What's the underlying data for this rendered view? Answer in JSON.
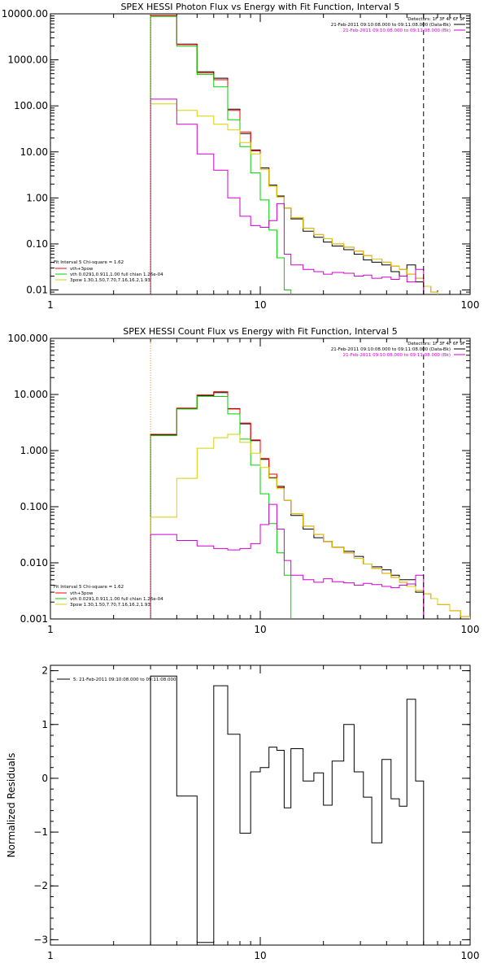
{
  "chart_data": [
    {
      "type": "line",
      "title": "SPEX HESSI Photon Flux vs Energy with Fit Function, Interval 5",
      "xscale": "log",
      "yscale": "log",
      "xlim": [
        1,
        100
      ],
      "ylim": [
        0.008,
        10000
      ],
      "xticks": [
        {
          "v": 1,
          "label": "1"
        },
        {
          "v": 10,
          "label": "10"
        },
        {
          "v": 100,
          "label": "100"
        }
      ],
      "yticks": [
        {
          "v": 10000,
          "label": "10000.00"
        },
        {
          "v": 1000,
          "label": "1000.00"
        },
        {
          "v": 100,
          "label": "100.00"
        },
        {
          "v": 10,
          "label": "10.00"
        },
        {
          "v": 1,
          "label": "1.00"
        },
        {
          "v": 0.1,
          "label": "0.10"
        },
        {
          "v": 0.01,
          "label": "0.01"
        }
      ],
      "vlines": [
        {
          "x": 3.0,
          "style": "dotted"
        },
        {
          "x": 60,
          "style": "dashed"
        }
      ],
      "header": [
        "Detectors: 1F 3F 4F 6F 9F",
        "21-Feb-2011 09:10:08.000 to 09:11:08.000 (Data-Bk)",
        "21-Feb-2011 09:10:08.000 to 09:11:08.000 (Bk)"
      ],
      "header_colors": [
        "#000000",
        "#000000",
        "#d000d0"
      ],
      "header_swatch": [
        false,
        true,
        true
      ],
      "legend": {
        "title": "Fit Interval 5   Chi-square = 1.62",
        "items": [
          {
            "label": "vth+3pow",
            "color": "#ff0000"
          },
          {
            "label": "vth 0.0291,0.911,1.00  full chian 1.26e-04",
            "color": "#00d000"
          },
          {
            "label": "3pow 1.30,1.50,7.70,7.16,16.2,1.93",
            "color": "#d8d000"
          }
        ]
      },
      "series": [
        {
          "color": "#000000",
          "edges": [
            3.0,
            4.0,
            5.0,
            6.0,
            7.0,
            8.0,
            9.0,
            10.0,
            11.0,
            12.0,
            13.0,
            14.0,
            16.0,
            18.0,
            20.0,
            22.0,
            25.0,
            28.0,
            31.0,
            34.0,
            38.0,
            42.0,
            46.0,
            50.0,
            55.0,
            60.0
          ],
          "values": [
            9000,
            2200,
            550,
            400,
            85,
            25,
            11,
            4.5,
            1.9,
            1.1,
            0.6,
            0.35,
            0.19,
            0.14,
            0.11,
            0.09,
            0.075,
            0.06,
            0.045,
            0.04,
            0.035,
            0.025,
            0.02,
            0.035,
            0.015
          ]
        },
        {
          "color": "#ff0000",
          "edges": [
            3.0,
            4.0,
            5.0,
            6.0,
            7.0,
            8.0,
            9.0,
            10.0,
            11.0,
            12.0,
            13.0,
            14.0,
            16.0,
            18.0,
            20.0,
            22.0,
            25.0,
            28.0,
            31.0,
            34.0,
            38.0,
            42.0,
            46.0,
            50.0,
            55.0,
            60.0,
            65.0,
            70.0
          ],
          "values": [
            9200,
            2150,
            520,
            370,
            80,
            27,
            10.5,
            4.2,
            1.8,
            1.05,
            0.6,
            0.37,
            0.22,
            0.16,
            0.13,
            0.1,
            0.085,
            0.07,
            0.056,
            0.047,
            0.04,
            0.033,
            0.028,
            0.022,
            0.018,
            0.012,
            0.009
          ]
        },
        {
          "color": "#00d000",
          "edges": [
            3.0,
            4.0,
            5.0,
            6.0,
            7.0,
            8.0,
            9.0,
            10.0,
            11.0,
            12.0,
            13.0,
            14.0
          ],
          "values": [
            8800,
            2000,
            480,
            260,
            50,
            13,
            3.5,
            0.9,
            0.2,
            0.05,
            0.01
          ]
        },
        {
          "color": "#d8d000",
          "edges": [
            3.0,
            4.0,
            5.0,
            6.0,
            7.0,
            8.0,
            9.0,
            10.0,
            11.0,
            12.0,
            13.0,
            14.0,
            16.0,
            18.0,
            20.0,
            22.0,
            25.0,
            28.0,
            31.0,
            34.0,
            38.0,
            42.0,
            46.0,
            50.0,
            55.0,
            60.0,
            65.0,
            70.0
          ],
          "values": [
            110,
            80,
            60,
            40,
            30,
            16,
            9,
            4.2,
            1.8,
            1.05,
            0.6,
            0.37,
            0.22,
            0.16,
            0.13,
            0.1,
            0.085,
            0.07,
            0.056,
            0.047,
            0.04,
            0.033,
            0.028,
            0.022,
            0.018,
            0.012,
            0.009
          ]
        },
        {
          "color": "#d000d0",
          "edges": [
            3.0,
            4.0,
            5.0,
            6.0,
            7.0,
            8.0,
            9.0,
            10.0,
            11.0,
            12.0,
            13.0,
            14.0,
            16.0,
            18.0,
            20.0,
            22.0,
            25.0,
            28.0,
            31.0,
            34.0,
            38.0,
            42.0,
            46.0,
            50.0,
            55.0,
            60.0
          ],
          "values": [
            140,
            40,
            9,
            4,
            1,
            0.4,
            0.25,
            0.23,
            0.32,
            0.75,
            0.06,
            0.035,
            0.028,
            0.025,
            0.022,
            0.024,
            0.023,
            0.02,
            0.021,
            0.018,
            0.019,
            0.017,
            0.02,
            0.015,
            0.028
          ]
        }
      ]
    },
    {
      "type": "line",
      "title": "SPEX HESSI Count Flux vs Energy with Fit Function, Interval 5",
      "xscale": "log",
      "yscale": "log",
      "xlim": [
        1,
        100
      ],
      "ylim": [
        0.001,
        100
      ],
      "xticks": [
        {
          "v": 1,
          "label": "1"
        },
        {
          "v": 10,
          "label": "10"
        },
        {
          "v": 100,
          "label": "100"
        }
      ],
      "yticks": [
        {
          "v": 100,
          "label": "100.000"
        },
        {
          "v": 10,
          "label": "10.000"
        },
        {
          "v": 1,
          "label": "1.000"
        },
        {
          "v": 0.1,
          "label": "0.100"
        },
        {
          "v": 0.01,
          "label": "0.010"
        },
        {
          "v": 0.001,
          "label": "0.001"
        }
      ],
      "vlines": [
        {
          "x": 3.0,
          "style": "dotted"
        },
        {
          "x": 60,
          "style": "dashed"
        }
      ],
      "header": [
        "Detectors: 1F 3F 4F 6F 9F",
        "21-Feb-2011 09:10:08.000 to 09:11:08.000 (Data-Bk)",
        "21-Feb-2011 09:10:08.000 to 09:11:08.000 (Bk)"
      ],
      "header_colors": [
        "#000000",
        "#000000",
        "#d000d0"
      ],
      "header_swatch": [
        false,
        true,
        true
      ],
      "legend": {
        "title": "Fit Interval 5   Chi-square = 1.62",
        "items": [
          {
            "label": "vth+3pow",
            "color": "#ff0000"
          },
          {
            "label": "vth 0.0291,0.911,1.00  full chian 1.26e-04",
            "color": "#00d000"
          },
          {
            "label": "3pow 1.30,1.50,7.70,7.16,16.2,1.93",
            "color": "#d8d000"
          }
        ]
      },
      "series": [
        {
          "color": "#000000",
          "edges": [
            3.0,
            4.0,
            5.0,
            6.0,
            7.0,
            8.0,
            9.0,
            10.0,
            11.0,
            12.0,
            13.0,
            14.0,
            16.0,
            18.0,
            20.0,
            22.0,
            25.0,
            28.0,
            31.0,
            34.0,
            38.0,
            42.0,
            46.0,
            50.0,
            55.0,
            60.0
          ],
          "values": [
            1.9,
            5.6,
            9.5,
            10.8,
            5.6,
            3.0,
            1.5,
            0.7,
            0.33,
            0.23,
            0.13,
            0.07,
            0.04,
            0.028,
            0.024,
            0.019,
            0.016,
            0.013,
            0.0095,
            0.0085,
            0.0075,
            0.006,
            0.005,
            0.005,
            0.003
          ]
        },
        {
          "color": "#ff0000",
          "edges": [
            3.0,
            4.0,
            5.0,
            6.0,
            7.0,
            8.0,
            9.0,
            10.0,
            11.0,
            12.0,
            13.0,
            14.0,
            16.0,
            18.0,
            20.0,
            22.0,
            25.0,
            28.0,
            31.0,
            34.0,
            38.0,
            42.0,
            46.0,
            50.0,
            55.0,
            60.0,
            65.0,
            70.0,
            80.0,
            90.0,
            100.0
          ],
          "values": [
            1.95,
            5.7,
            9.8,
            11.2,
            5.5,
            3.1,
            1.55,
            0.72,
            0.38,
            0.22,
            0.13,
            0.075,
            0.045,
            0.032,
            0.024,
            0.019,
            0.015,
            0.012,
            0.0095,
            0.008,
            0.0065,
            0.0055,
            0.0045,
            0.0038,
            0.0032,
            0.0028,
            0.0023,
            0.0018,
            0.0014,
            0.0011
          ]
        },
        {
          "color": "#00d000",
          "edges": [
            3.0,
            4.0,
            5.0,
            6.0,
            7.0,
            8.0,
            9.0,
            10.0,
            11.0,
            12.0,
            13.0,
            14.0,
            16.0
          ],
          "values": [
            1.85,
            5.5,
            9.3,
            9.2,
            4.5,
            1.6,
            0.55,
            0.17,
            0.05,
            0.015,
            0.006,
            0.0009
          ]
        },
        {
          "color": "#d8d000",
          "edges": [
            3.0,
            4.0,
            5.0,
            6.0,
            7.0,
            8.0,
            9.0,
            10.0,
            11.0,
            12.0,
            13.0,
            14.0,
            16.0,
            18.0,
            20.0,
            22.0,
            25.0,
            28.0,
            31.0,
            34.0,
            38.0,
            42.0,
            46.0,
            50.0,
            55.0,
            60.0,
            65.0,
            70.0,
            80.0,
            90.0,
            100.0
          ],
          "values": [
            0.065,
            0.32,
            1.1,
            1.7,
            1.95,
            1.4,
            0.9,
            0.5,
            0.32,
            0.21,
            0.13,
            0.075,
            0.045,
            0.032,
            0.024,
            0.019,
            0.015,
            0.012,
            0.0095,
            0.008,
            0.0065,
            0.0055,
            0.0045,
            0.0038,
            0.0032,
            0.0028,
            0.0023,
            0.0018,
            0.0014,
            0.0011
          ]
        },
        {
          "color": "#d000d0",
          "edges": [
            3.0,
            4.0,
            5.0,
            6.0,
            7.0,
            8.0,
            9.0,
            10.0,
            11.0,
            12.0,
            13.0,
            14.0,
            16.0,
            18.0,
            20.0,
            22.0,
            25.0,
            28.0,
            31.0,
            34.0,
            38.0,
            42.0,
            46.0,
            50.0,
            55.0,
            60.0
          ],
          "values": [
            0.032,
            0.025,
            0.02,
            0.018,
            0.017,
            0.018,
            0.022,
            0.048,
            0.11,
            0.04,
            0.011,
            0.006,
            0.005,
            0.0045,
            0.0052,
            0.0046,
            0.0044,
            0.004,
            0.0043,
            0.0041,
            0.0038,
            0.0036,
            0.004,
            0.0042,
            0.006
          ]
        }
      ]
    },
    {
      "type": "line",
      "xscale": "log",
      "yscale": "linear",
      "xlim": [
        1,
        100
      ],
      "ylim": [
        -3.1,
        2.1
      ],
      "ylabel": "Normalized Residuals",
      "xticks": [
        {
          "v": 1,
          "label": "1"
        },
        {
          "v": 10,
          "label": "10"
        },
        {
          "v": 100,
          "label": "100"
        }
      ],
      "yticks": [
        {
          "v": 2,
          "label": "2"
        },
        {
          "v": 1,
          "label": "1"
        },
        {
          "v": 0,
          "label": "0"
        },
        {
          "v": -1,
          "label": "−1"
        },
        {
          "v": -2,
          "label": "−2"
        },
        {
          "v": -3,
          "label": "−3"
        }
      ],
      "legend": {
        "items": [
          {
            "label": "5: 21-Feb-2011 09:10:08.000 to 09:11:08.000",
            "color": "#000000"
          }
        ]
      },
      "series": [
        {
          "color": "#000000",
          "edges": [
            3.0,
            4.0,
            5.0,
            6.0,
            7.0,
            8.0,
            9.0,
            10.0,
            11.0,
            12.0,
            13.0,
            14.0,
            16.0,
            18.0,
            20.0,
            22.0,
            25.0,
            28.0,
            31.0,
            34.0,
            38.0,
            42.0,
            46.0,
            50.0,
            55.0,
            60.0
          ],
          "values": [
            1.9,
            -0.33,
            -3.05,
            1.72,
            0.82,
            -1.02,
            0.12,
            0.2,
            0.58,
            0.52,
            -0.55,
            0.55,
            -0.05,
            0.1,
            -0.5,
            0.32,
            1.0,
            0.12,
            -0.35,
            -1.2,
            0.35,
            -0.38,
            -0.52,
            1.47,
            -0.05
          ]
        }
      ]
    }
  ]
}
